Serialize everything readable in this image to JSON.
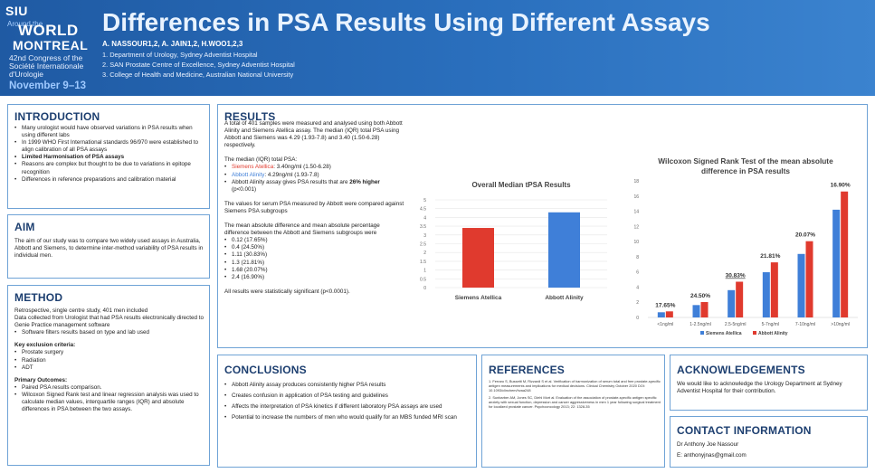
{
  "header": {
    "logo": {
      "siu": "SIU",
      "around": "Around the",
      "world": "WORLD",
      "montreal": "MONTREAL",
      "congress": "42nd Congress of the Société Internationale d'Urologie",
      "dates": "November 9–13"
    },
    "title": "Differences in PSA Results Using Different Assays",
    "authors": "A. NASSOUR1,2, A. JAIN1,2, H.WOO1,2,3",
    "affiliations": [
      "1. Department of Urology, Sydney Adventist Hospital",
      "2. SAN Prostate Centre of Excellence, Sydney Adventist Hospital",
      "3. College of Health and Medicine, Australian National University"
    ]
  },
  "introduction": {
    "heading": "INTRODUCTION",
    "bullets": [
      "Many urologist would have observed variations in PSA results when using different labs",
      "In 1999 WHO First International standards 96/970 were established to align calibration of all PSA assays",
      "Limited Harmonisation of PSA assays",
      "Reasons are complex but thought to be due to variations in epitope recognition",
      "Differences in reference preparations and calibration material"
    ]
  },
  "aim": {
    "heading": "AIM",
    "text": "The aim of our study was to compare two widely used assays in Australia, Abbott and Siemens, to determine inter-method variability of PSA results in individual men."
  },
  "method": {
    "heading": "METHOD",
    "lines": [
      "Retrospective, single centre study, 401 men included",
      "Data collected from Urologist that had PSA results electronically directed to Genie Practice management software"
    ],
    "bullets1": [
      "Software filters results based on type and lab used"
    ],
    "exclusion_title": "Key exclusion criteria:",
    "exclusion": [
      "Prostate surgery",
      "Radiation",
      "ADT"
    ],
    "outcomes_title": "Primary Outcomes:",
    "outcomes": [
      "Paired PSA results comparison.",
      "Wilcoxon Signed Rank test and linear regression analysis was used to calculate median values, interquartile ranges (IQR) and absolute differences in PSA between the two assays."
    ]
  },
  "results": {
    "heading": "RESULTS",
    "p1": "A total of 401 samples were measured and analysed using both Abbott Alinity and Siemens Atellica assay. The median (IQR) total PSA using Abbott and Siemens was 4.29 (1.93-7.8) and 3.40 (1.50-6.28) respectively.",
    "p2": "The median (IQR) total PSA:",
    "siemens_label": "Siemens Atellica",
    "siemens_value": ": 3.40ng/ml (1.50-6.28)",
    "abbott_label": "Abbott Alinity",
    "abbott_value": ": 4.29ng/ml (1.93-7.8)",
    "higher_pre": "Abbott Alinity assay gives PSA results that are ",
    "higher_bold": "26% higher",
    "higher_post": " (p<0.001)",
    "p3": "The values for serum PSA measured by Abbott were compared against Siemens PSA subgroups",
    "p4": "The mean absolute difference and mean absolute percentage difference between the Abbott and Siemens subgroups were",
    "diffs": [
      "0.12 (17.65%)",
      "0.4 (24.50%)",
      "1.11 (30.83%)",
      "1.3 (21.81%)",
      "1.68 (20.07%)",
      "2.4 (16.90%)"
    ],
    "p5": "All results were  statistically significant (p<0.0001)."
  },
  "chart_data": [
    {
      "type": "bar",
      "title": "Overall Median tPSA Results",
      "categories": [
        "Siemens Atellica",
        "Abbott Alinity"
      ],
      "values": [
        3.4,
        4.29
      ],
      "colors": [
        "#e03a2e",
        "#3f7fd8"
      ],
      "ylim": [
        0,
        5
      ],
      "yticks": [
        "0",
        "0.5",
        "1",
        "1.5",
        "2",
        "2.5",
        "3",
        "3.5",
        "4",
        "4.5",
        "5"
      ]
    },
    {
      "type": "bar",
      "title": "Wilcoxon Signed Rank Test of the mean absolute difference in PSA results",
      "categories": [
        "<1ng/ml",
        "1-2.5ng/ml",
        "2.5-5ng/ml",
        "5-7ng/ml",
        "7-10ng/ml",
        ">10ng/ml"
      ],
      "series": [
        {
          "name": "Siemens Atellica",
          "color": "#3f7fd8",
          "values": [
            0.68,
            1.63,
            3.6,
            5.96,
            8.37,
            14.2
          ]
        },
        {
          "name": "Abbott Alinity",
          "color": "#e03a2e",
          "values": [
            0.8,
            2.03,
            4.71,
            7.26,
            10.05,
            16.6
          ]
        }
      ],
      "annotations": [
        "17.65%",
        "24.50%",
        "30.83%",
        "21.81%",
        "20.07%",
        "16.90%"
      ],
      "ylim": [
        0,
        18
      ],
      "yticks": [
        "0",
        "2",
        "4",
        "6",
        "8",
        "10",
        "12",
        "14",
        "16",
        "18"
      ],
      "legend": "bottom"
    }
  ],
  "conclusions": {
    "heading": "CONCLUSIONS",
    "bullets": [
      "Abbott Alinity assay produces consistently higher PSA results",
      "Creates confusion in application of PSA testing and guidelines",
      "Affects the interpretation of PSA kinetics if different laboratory PSA assays are used",
      "Potential to increase the numbers of men who would qualify for an MBS funded MRI scan"
    ]
  },
  "references": {
    "heading": "REFERENCES",
    "items": [
      "1. Ferraro S, Bussetti M, Rizzardi S et al. Verification of harmonization of serum total and free prostate-specific antigen measurements and implications for medical decisions. Clinical Chemistry October 2020 DOI: 10.1093/clinchem/hvaa248",
      "2. Sunbarber AM, Jones SC, Diehl Mort al. Evaluation of the association of prostate-specific antigen specific anxiety with sexual function, depression and cancer aggressiveness in men 1 year following surgical treatment for localized prostate cancer. Psychooncology 2013; 22: 1328-35"
    ]
  },
  "acknowledgements": {
    "heading": "ACKNOWLEDGEMENTS",
    "text": "We would like to acknowledge the Urology Department at Sydney Adventist Hospital for their contribution."
  },
  "contact": {
    "heading": "CONTACT INFORMATION",
    "name": "Dr Anthony Joe Nassour",
    "email": "E: anthonyjnas@gmail.com"
  }
}
